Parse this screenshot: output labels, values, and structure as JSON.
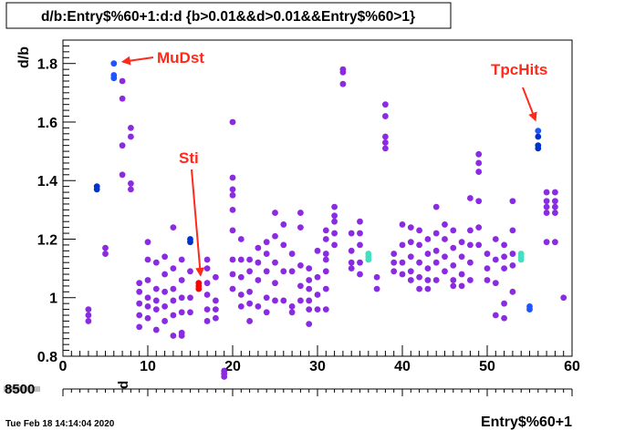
{
  "chart_data": {
    "type": "scatter",
    "title": "d/b:Entry$%60+1:d:d {b>0.01&&d>0.01&&Entry$%60>1}",
    "xlabel": "Entry$%60+1",
    "ylabel": "d/b",
    "z_axis_label": "d",
    "z_axis_stack_label": "8500",
    "footer": "Tue Feb 18 14:14:04 2020",
    "xlim": [
      0,
      60
    ],
    "ylim": [
      0.8,
      1.88
    ],
    "x_ticks": [
      "0",
      "10",
      "20",
      "30",
      "40",
      "50",
      "60"
    ],
    "y_ticks": [
      "0.8",
      "1",
      "1.2",
      "1.4",
      "1.6",
      "1.8"
    ],
    "grid": false,
    "colors": {
      "purple": "#8a2be2",
      "blue": "#1f55ff",
      "darkblue": "#0033cc",
      "teal": "#40e0c0",
      "red": "#ff0000",
      "annotation": "#ff2a1a"
    },
    "annotations": [
      {
        "text": "MuDst",
        "x": 6,
        "y": 1.8
      },
      {
        "text": "Sti",
        "x": 16,
        "y": 1.04
      },
      {
        "text": "TpcHits",
        "x": 56,
        "y": 1.57
      }
    ],
    "points": [
      [
        3,
        0.96,
        "purple"
      ],
      [
        3,
        0.94,
        "purple"
      ],
      [
        3,
        0.92,
        "purple"
      ],
      [
        4,
        1.38,
        "darkblue"
      ],
      [
        4,
        1.37,
        "darkblue"
      ],
      [
        5,
        1.17,
        "purple"
      ],
      [
        5,
        1.15,
        "purple"
      ],
      [
        6,
        1.8,
        "blue"
      ],
      [
        6,
        1.76,
        "blue"
      ],
      [
        6,
        1.75,
        "blue"
      ],
      [
        7,
        1.74,
        "purple"
      ],
      [
        7,
        1.68,
        "purple"
      ],
      [
        7,
        1.52,
        "purple"
      ],
      [
        7,
        1.42,
        "purple"
      ],
      [
        8,
        1.58,
        "purple"
      ],
      [
        8,
        1.55,
        "purple"
      ],
      [
        8,
        1.39,
        "purple"
      ],
      [
        8,
        1.37,
        "purple"
      ],
      [
        9,
        1.05,
        "purple"
      ],
      [
        9,
        1.02,
        "purple"
      ],
      [
        9,
        0.98,
        "purple"
      ],
      [
        9,
        0.94,
        "purple"
      ],
      [
        9,
        0.9,
        "purple"
      ],
      [
        10,
        1.19,
        "purple"
      ],
      [
        10,
        1.13,
        "purple"
      ],
      [
        10,
        1.06,
        "purple"
      ],
      [
        10,
        1.0,
        "purple"
      ],
      [
        10,
        0.97,
        "purple"
      ],
      [
        10,
        0.93,
        "purple"
      ],
      [
        11,
        1.12,
        "purple"
      ],
      [
        11,
        1.03,
        "purple"
      ],
      [
        11,
        0.99,
        "purple"
      ],
      [
        11,
        0.96,
        "purple"
      ],
      [
        11,
        0.89,
        "purple"
      ],
      [
        12,
        1.14,
        "purple"
      ],
      [
        12,
        1.08,
        "purple"
      ],
      [
        12,
        1.02,
        "purple"
      ],
      [
        12,
        0.97,
        "purple"
      ],
      [
        12,
        0.92,
        "purple"
      ],
      [
        13,
        1.24,
        "purple"
      ],
      [
        13,
        1.1,
        "purple"
      ],
      [
        13,
        1.03,
        "purple"
      ],
      [
        13,
        0.99,
        "purple"
      ],
      [
        13,
        0.94,
        "purple"
      ],
      [
        13,
        0.87,
        "purple"
      ],
      [
        14,
        1.13,
        "purple"
      ],
      [
        14,
        1.06,
        "purple"
      ],
      [
        14,
        1.0,
        "purple"
      ],
      [
        14,
        0.95,
        "purple"
      ],
      [
        14,
        0.88,
        "purple"
      ],
      [
        14,
        0.87,
        "purple"
      ],
      [
        15,
        1.2,
        "darkblue"
      ],
      [
        15,
        1.19,
        "darkblue"
      ],
      [
        15,
        1.09,
        "purple"
      ],
      [
        15,
        1.0,
        "purple"
      ],
      [
        15,
        0.95,
        "purple"
      ],
      [
        16,
        1.05,
        "red"
      ],
      [
        16,
        1.04,
        "red"
      ],
      [
        16,
        1.03,
        "red"
      ],
      [
        17,
        1.13,
        "purple"
      ],
      [
        17,
        1.1,
        "purple"
      ],
      [
        17,
        1.05,
        "purple"
      ],
      [
        17,
        1.01,
        "purple"
      ],
      [
        17,
        0.96,
        "purple"
      ],
      [
        17,
        0.92,
        "purple"
      ],
      [
        18,
        1.07,
        "purple"
      ],
      [
        18,
        0.99,
        "purple"
      ],
      [
        18,
        0.96,
        "purple"
      ],
      [
        18,
        0.93,
        "purple"
      ],
      [
        19,
        0.75,
        "purple"
      ],
      [
        19,
        0.74,
        "purple"
      ],
      [
        19,
        0.73,
        "purple"
      ],
      [
        20,
        1.6,
        "purple"
      ],
      [
        20,
        1.41,
        "purple"
      ],
      [
        20,
        1.37,
        "purple"
      ],
      [
        20,
        1.35,
        "purple"
      ],
      [
        20,
        1.3,
        "purple"
      ],
      [
        20,
        1.23,
        "purple"
      ],
      [
        20,
        1.13,
        "purple"
      ],
      [
        20,
        1.08,
        "purple"
      ],
      [
        20,
        1.03,
        "purple"
      ],
      [
        21,
        1.2,
        "purple"
      ],
      [
        21,
        1.13,
        "purple"
      ],
      [
        21,
        1.07,
        "purple"
      ],
      [
        21,
        1.01,
        "purple"
      ],
      [
        21,
        0.97,
        "purple"
      ],
      [
        22,
        1.13,
        "purple"
      ],
      [
        22,
        1.09,
        "purple"
      ],
      [
        22,
        1.02,
        "purple"
      ],
      [
        22,
        0.98,
        "purple"
      ],
      [
        22,
        0.92,
        "purple"
      ],
      [
        23,
        1.17,
        "purple"
      ],
      [
        23,
        1.12,
        "purple"
      ],
      [
        23,
        1.06,
        "purple"
      ],
      [
        23,
        0.97,
        "purple"
      ],
      [
        24,
        1.19,
        "purple"
      ],
      [
        24,
        1.15,
        "purple"
      ],
      [
        24,
        1.09,
        "purple"
      ],
      [
        24,
        1.0,
        "purple"
      ],
      [
        24,
        0.95,
        "purple"
      ],
      [
        25,
        1.29,
        "purple"
      ],
      [
        25,
        1.21,
        "purple"
      ],
      [
        25,
        1.12,
        "purple"
      ],
      [
        25,
        1.05,
        "purple"
      ],
      [
        25,
        0.99,
        "purple"
      ],
      [
        26,
        1.25,
        "purple"
      ],
      [
        26,
        1.18,
        "purple"
      ],
      [
        26,
        1.09,
        "purple"
      ],
      [
        26,
        0.99,
        "purple"
      ],
      [
        27,
        1.15,
        "purple"
      ],
      [
        27,
        1.09,
        "purple"
      ],
      [
        27,
        0.97,
        "purple"
      ],
      [
        27,
        0.95,
        "purple"
      ],
      [
        28,
        1.29,
        "purple"
      ],
      [
        28,
        1.24,
        "purple"
      ],
      [
        28,
        1.11,
        "purple"
      ],
      [
        28,
        1.04,
        "purple"
      ],
      [
        28,
        0.99,
        "purple"
      ],
      [
        29,
        1.1,
        "purple"
      ],
      [
        29,
        1.06,
        "purple"
      ],
      [
        29,
        1.03,
        "purple"
      ],
      [
        29,
        0.99,
        "purple"
      ],
      [
        29,
        0.96,
        "purple"
      ],
      [
        29,
        0.91,
        "purple"
      ],
      [
        30,
        1.16,
        "purple"
      ],
      [
        30,
        1.07,
        "purple"
      ],
      [
        30,
        1.01,
        "purple"
      ],
      [
        30,
        0.96,
        "purple"
      ],
      [
        31,
        1.23,
        "purple"
      ],
      [
        31,
        1.2,
        "purple"
      ],
      [
        31,
        1.15,
        "purple"
      ],
      [
        31,
        1.13,
        "purple"
      ],
      [
        31,
        1.09,
        "purple"
      ],
      [
        31,
        1.03,
        "purple"
      ],
      [
        31,
        0.96,
        "purple"
      ],
      [
        32,
        1.31,
        "purple"
      ],
      [
        32,
        1.28,
        "purple"
      ],
      [
        32,
        1.26,
        "purple"
      ],
      [
        32,
        1.22,
        "purple"
      ],
      [
        32,
        1.18,
        "purple"
      ],
      [
        33,
        1.78,
        "purple"
      ],
      [
        33,
        1.77,
        "purple"
      ],
      [
        33,
        1.73,
        "purple"
      ],
      [
        34,
        1.22,
        "purple"
      ],
      [
        34,
        1.16,
        "purple"
      ],
      [
        34,
        1.12,
        "purple"
      ],
      [
        34,
        1.1,
        "purple"
      ],
      [
        35,
        1.26,
        "purple"
      ],
      [
        35,
        1.22,
        "purple"
      ],
      [
        35,
        1.18,
        "purple"
      ],
      [
        35,
        1.12,
        "purple"
      ],
      [
        35,
        1.08,
        "purple"
      ],
      [
        36,
        1.15,
        "teal"
      ],
      [
        36,
        1.14,
        "teal"
      ],
      [
        36,
        1.13,
        "teal"
      ],
      [
        37,
        1.07,
        "purple"
      ],
      [
        37,
        1.03,
        "purple"
      ],
      [
        38,
        1.66,
        "purple"
      ],
      [
        38,
        1.62,
        "purple"
      ],
      [
        38,
        1.55,
        "purple"
      ],
      [
        38,
        1.53,
        "purple"
      ],
      [
        38,
        1.51,
        "purple"
      ],
      [
        39,
        1.15,
        "purple"
      ],
      [
        39,
        1.12,
        "purple"
      ],
      [
        39,
        1.09,
        "purple"
      ],
      [
        40,
        1.25,
        "purple"
      ],
      [
        40,
        1.18,
        "purple"
      ],
      [
        40,
        1.12,
        "purple"
      ],
      [
        40,
        1.08,
        "purple"
      ],
      [
        41,
        1.24,
        "purple"
      ],
      [
        41,
        1.19,
        "purple"
      ],
      [
        41,
        1.14,
        "purple"
      ],
      [
        41,
        1.09,
        "purple"
      ],
      [
        41,
        1.06,
        "purple"
      ],
      [
        42,
        1.23,
        "purple"
      ],
      [
        42,
        1.18,
        "purple"
      ],
      [
        42,
        1.12,
        "purple"
      ],
      [
        42,
        1.07,
        "purple"
      ],
      [
        42,
        1.03,
        "purple"
      ],
      [
        43,
        1.2,
        "purple"
      ],
      [
        43,
        1.15,
        "purple"
      ],
      [
        43,
        1.1,
        "purple"
      ],
      [
        43,
        1.06,
        "purple"
      ],
      [
        43,
        1.03,
        "purple"
      ],
      [
        44,
        1.31,
        "purple"
      ],
      [
        44,
        1.22,
        "purple"
      ],
      [
        44,
        1.16,
        "purple"
      ],
      [
        44,
        1.12,
        "purple"
      ],
      [
        44,
        1.06,
        "purple"
      ],
      [
        45,
        1.25,
        "purple"
      ],
      [
        45,
        1.2,
        "purple"
      ],
      [
        45,
        1.14,
        "purple"
      ],
      [
        45,
        1.09,
        "purple"
      ],
      [
        46,
        1.23,
        "purple"
      ],
      [
        46,
        1.17,
        "purple"
      ],
      [
        46,
        1.11,
        "purple"
      ],
      [
        46,
        1.06,
        "purple"
      ],
      [
        46,
        1.04,
        "purple"
      ],
      [
        47,
        1.19,
        "purple"
      ],
      [
        47,
        1.14,
        "purple"
      ],
      [
        47,
        1.08,
        "purple"
      ],
      [
        47,
        1.04,
        "purple"
      ],
      [
        48,
        1.34,
        "purple"
      ],
      [
        48,
        1.23,
        "purple"
      ],
      [
        48,
        1.18,
        "purple"
      ],
      [
        48,
        1.12,
        "purple"
      ],
      [
        48,
        1.06,
        "purple"
      ],
      [
        49,
        1.49,
        "purple"
      ],
      [
        49,
        1.46,
        "purple"
      ],
      [
        49,
        1.43,
        "purple"
      ],
      [
        49,
        1.33,
        "purple"
      ],
      [
        49,
        1.24,
        "purple"
      ],
      [
        49,
        1.18,
        "purple"
      ],
      [
        50,
        1.15,
        "purple"
      ],
      [
        50,
        1.1,
        "purple"
      ],
      [
        50,
        1.06,
        "purple"
      ],
      [
        51,
        1.2,
        "purple"
      ],
      [
        51,
        1.13,
        "purple"
      ],
      [
        51,
        1.05,
        "purple"
      ],
      [
        51,
        0.94,
        "purple"
      ],
      [
        52,
        1.18,
        "purple"
      ],
      [
        52,
        1.14,
        "purple"
      ],
      [
        52,
        1.1,
        "purple"
      ],
      [
        52,
        0.98,
        "purple"
      ],
      [
        52,
        0.93,
        "purple"
      ],
      [
        53,
        1.33,
        "purple"
      ],
      [
        53,
        1.23,
        "purple"
      ],
      [
        53,
        1.15,
        "purple"
      ],
      [
        53,
        1.11,
        "purple"
      ],
      [
        53,
        1.02,
        "purple"
      ],
      [
        54,
        1.15,
        "teal"
      ],
      [
        54,
        1.14,
        "teal"
      ],
      [
        54,
        1.13,
        "teal"
      ],
      [
        55,
        0.97,
        "blue"
      ],
      [
        55,
        0.96,
        "blue"
      ],
      [
        56,
        1.57,
        "blue"
      ],
      [
        56,
        1.55,
        "darkblue"
      ],
      [
        56,
        1.52,
        "darkblue"
      ],
      [
        56,
        1.51,
        "darkblue"
      ],
      [
        57,
        1.36,
        "purple"
      ],
      [
        57,
        1.33,
        "purple"
      ],
      [
        57,
        1.31,
        "purple"
      ],
      [
        57,
        1.29,
        "purple"
      ],
      [
        57,
        1.19,
        "purple"
      ],
      [
        58,
        1.36,
        "purple"
      ],
      [
        58,
        1.33,
        "purple"
      ],
      [
        58,
        1.31,
        "purple"
      ],
      [
        58,
        1.29,
        "purple"
      ],
      [
        58,
        1.19,
        "purple"
      ],
      [
        59,
        1.0,
        "purple"
      ]
    ]
  }
}
